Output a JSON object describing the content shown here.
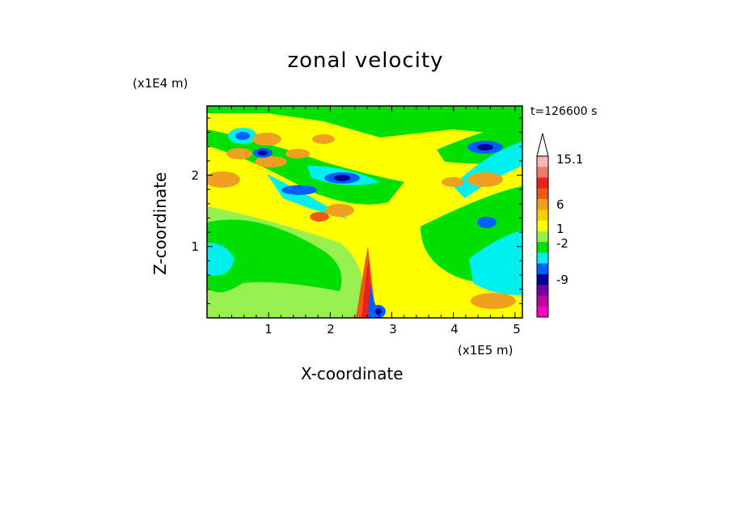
{
  "chart_data": {
    "type": "heatmap",
    "title": "zonal velocity",
    "xlabel": "X-coordinate",
    "ylabel": "Z-coordinate",
    "x_unit_label": "(x1E5 m)",
    "z_unit_label": "(x1E4 m)",
    "time_label": "t=126600 s",
    "xlim": [
      0,
      5.12
    ],
    "ylim": [
      0,
      2.97
    ],
    "x_ticks": [
      "1",
      "2",
      "3",
      "4",
      "5"
    ],
    "y_ticks": [
      "1",
      "2"
    ],
    "colorbar": {
      "extend_max": true,
      "colors": [
        "#f7b8b0",
        "#ef7a6e",
        "#e8221c",
        "#f05a10",
        "#f0a020",
        "#f5d000",
        "#ffff00",
        "#98f050",
        "#00e000",
        "#00f0f0",
        "#0060ff",
        "#000098",
        "#7000a0",
        "#c000a0",
        "#ff00c0"
      ],
      "labels": [
        "15.1",
        "6",
        "1",
        "-2",
        "-9"
      ]
    },
    "field_description_values": {
      "background_value_range": [
        -2,
        1
      ],
      "max_label": "15.1",
      "min_label": "-9"
    }
  }
}
